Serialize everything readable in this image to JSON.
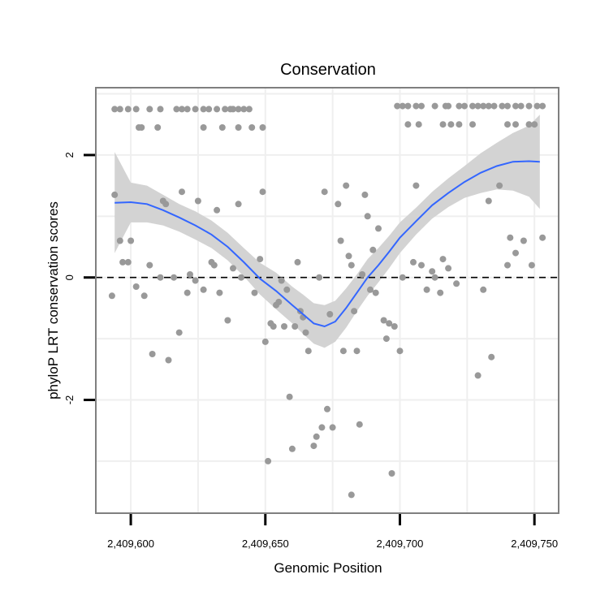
{
  "chart_data": {
    "type": "scatter",
    "title": "Conservation",
    "xlabel": "Genomic Position",
    "ylabel": "phyloP LRT conservation scores",
    "xlim": [
      2409587,
      2409759
    ],
    "ylim": [
      -3.85,
      3.1
    ],
    "x_ticks": [
      {
        "value": 2409600,
        "label": "2,409,600"
      },
      {
        "value": 2409650,
        "label": "2,409,650"
      },
      {
        "value": 2409700,
        "label": "2,409,700"
      },
      {
        "value": 2409750,
        "label": "2,409,750"
      }
    ],
    "y_ticks": [
      {
        "value": -2,
        "label": "-2"
      },
      {
        "value": 0,
        "label": "0"
      },
      {
        "value": 2,
        "label": "2"
      }
    ],
    "grid": true,
    "reference_line": {
      "y": 0,
      "style": "dashed"
    },
    "colors": {
      "points": "#999999",
      "smooth": "#3366ff",
      "ribbon": "#d3d3d3",
      "grid": "#efefef",
      "border": "#7f7f7f",
      "reference": "#000000"
    },
    "points": [
      [
        2409594,
        2.75
      ],
      [
        2409596,
        2.75
      ],
      [
        2409599,
        2.75
      ],
      [
        2409602,
        2.75
      ],
      [
        2409607,
        2.75
      ],
      [
        2409611,
        2.75
      ],
      [
        2409617,
        2.75
      ],
      [
        2409619,
        2.75
      ],
      [
        2409621,
        2.75
      ],
      [
        2409624,
        2.75
      ],
      [
        2409627,
        2.75
      ],
      [
        2409629,
        2.75
      ],
      [
        2409632,
        2.75
      ],
      [
        2409635,
        2.75
      ],
      [
        2409637,
        2.75
      ],
      [
        2409638,
        2.75
      ],
      [
        2409640,
        2.75
      ],
      [
        2409642,
        2.75
      ],
      [
        2409644,
        2.75
      ],
      [
        2409603,
        2.45
      ],
      [
        2409604,
        2.45
      ],
      [
        2409610,
        2.45
      ],
      [
        2409627,
        2.45
      ],
      [
        2409634,
        2.45
      ],
      [
        2409640,
        2.45
      ],
      [
        2409645,
        2.45
      ],
      [
        2409649,
        2.45
      ],
      [
        2409699,
        2.8
      ],
      [
        2409701,
        2.8
      ],
      [
        2409703,
        2.8
      ],
      [
        2409706,
        2.8
      ],
      [
        2409708,
        2.8
      ],
      [
        2409713,
        2.8
      ],
      [
        2409717,
        2.8
      ],
      [
        2409718,
        2.8
      ],
      [
        2409722,
        2.8
      ],
      [
        2409724,
        2.8
      ],
      [
        2409727,
        2.8
      ],
      [
        2409729,
        2.8
      ],
      [
        2409731,
        2.8
      ],
      [
        2409733,
        2.8
      ],
      [
        2409735,
        2.8
      ],
      [
        2409738,
        2.8
      ],
      [
        2409740,
        2.8
      ],
      [
        2409743,
        2.8
      ],
      [
        2409745,
        2.8
      ],
      [
        2409748,
        2.8
      ],
      [
        2409751,
        2.8
      ],
      [
        2409753,
        2.8
      ],
      [
        2409703,
        2.5
      ],
      [
        2409707,
        2.5
      ],
      [
        2409716,
        2.5
      ],
      [
        2409719,
        2.5
      ],
      [
        2409722,
        2.5
      ],
      [
        2409727,
        2.5
      ],
      [
        2409740,
        2.5
      ],
      [
        2409743,
        2.5
      ],
      [
        2409748,
        2.5
      ],
      [
        2409750,
        2.5
      ],
      [
        2409594,
        1.35
      ],
      [
        2409596,
        0.6
      ],
      [
        2409597,
        0.25
      ],
      [
        2409599,
        0.25
      ],
      [
        2409600,
        0.6
      ],
      [
        2409593,
        -0.3
      ],
      [
        2409602,
        -0.15
      ],
      [
        2409605,
        -0.3
      ],
      [
        2409607,
        0.2
      ],
      [
        2409608,
        -1.25
      ],
      [
        2409611,
        0
      ],
      [
        2409612,
        1.25
      ],
      [
        2409613,
        1.2
      ],
      [
        2409614,
        -1.35
      ],
      [
        2409616,
        0
      ],
      [
        2409618,
        -0.9
      ],
      [
        2409619,
        1.4
      ],
      [
        2409621,
        -0.25
      ],
      [
        2409622,
        0.05
      ],
      [
        2409624,
        -0.05
      ],
      [
        2409625,
        1.25
      ],
      [
        2409627,
        -0.2
      ],
      [
        2409630,
        0.25
      ],
      [
        2409631,
        0.2
      ],
      [
        2409632,
        1.1
      ],
      [
        2409633,
        -0.25
      ],
      [
        2409636,
        -0.7
      ],
      [
        2409638,
        0.15
      ],
      [
        2409640,
        1.2
      ],
      [
        2409641,
        0
      ],
      [
        2409646,
        -0.25
      ],
      [
        2409648,
        0.3
      ],
      [
        2409649,
        1.4
      ],
      [
        2409650,
        -1.05
      ],
      [
        2409651,
        -3
      ],
      [
        2409652,
        -0.75
      ],
      [
        2409653,
        -0.8
      ],
      [
        2409654,
        -0.45
      ],
      [
        2409655,
        -0.4
      ],
      [
        2409656,
        -0.05
      ],
      [
        2409657,
        -0.8
      ],
      [
        2409658,
        -0.2
      ],
      [
        2409659,
        -1.95
      ],
      [
        2409660,
        -2.8
      ],
      [
        2409661,
        -0.8
      ],
      [
        2409662,
        0.25
      ],
      [
        2409663,
        -0.55
      ],
      [
        2409664,
        -0.65
      ],
      [
        2409665,
        -0.9
      ],
      [
        2409666,
        -1.2
      ],
      [
        2409668,
        -2.75
      ],
      [
        2409669,
        -2.6
      ],
      [
        2409670,
        0
      ],
      [
        2409671,
        -2.45
      ],
      [
        2409672,
        1.4
      ],
      [
        2409673,
        -2.15
      ],
      [
        2409674,
        -0.6
      ],
      [
        2409675,
        -2.45
      ],
      [
        2409677,
        1.2
      ],
      [
        2409678,
        0.6
      ],
      [
        2409679,
        -1.2
      ],
      [
        2409680,
        1.5
      ],
      [
        2409681,
        0.35
      ],
      [
        2409682,
        0.2
      ],
      [
        2409682,
        -3.55
      ],
      [
        2409683,
        -0.55
      ],
      [
        2409684,
        -1.2
      ],
      [
        2409685,
        -2.4
      ],
      [
        2409686,
        0.05
      ],
      [
        2409687,
        1.35
      ],
      [
        2409688,
        1
      ],
      [
        2409689,
        -0.2
      ],
      [
        2409690,
        0.45
      ],
      [
        2409691,
        -0.25
      ],
      [
        2409692,
        0.8
      ],
      [
        2409694,
        -0.7
      ],
      [
        2409695,
        -1
      ],
      [
        2409696,
        -0.75
      ],
      [
        2409697,
        -3.2
      ],
      [
        2409698,
        -0.8
      ],
      [
        2409700,
        -1.2
      ],
      [
        2409701,
        0
      ],
      [
        2409705,
        0.25
      ],
      [
        2409706,
        1.5
      ],
      [
        2409708,
        0.2
      ],
      [
        2409710,
        -0.2
      ],
      [
        2409712,
        0.1
      ],
      [
        2409713,
        0
      ],
      [
        2409715,
        -0.25
      ],
      [
        2409716,
        0.3
      ],
      [
        2409718,
        0.15
      ],
      [
        2409721,
        -0.1
      ],
      [
        2409729,
        -1.6
      ],
      [
        2409731,
        -0.2
      ],
      [
        2409733,
        1.25
      ],
      [
        2409734,
        -1.3
      ],
      [
        2409737,
        1.5
      ],
      [
        2409740,
        0.2
      ],
      [
        2409741,
        0.65
      ],
      [
        2409743,
        0.4
      ],
      [
        2409746,
        0.6
      ],
      [
        2409749,
        0.2
      ],
      [
        2409753,
        0.65
      ]
    ],
    "smooth": {
      "x": [
        2409594,
        2409600,
        2409606,
        2409612,
        2409618,
        2409624,
        2409630,
        2409636,
        2409642,
        2409648,
        2409654,
        2409660,
        2409664,
        2409668,
        2409672,
        2409676,
        2409680,
        2409684,
        2409688,
        2409692,
        2409696,
        2409700,
        2409706,
        2409712,
        2409718,
        2409724,
        2409730,
        2409736,
        2409742,
        2409748,
        2409752
      ],
      "y": [
        1.22,
        1.23,
        1.2,
        1.1,
        0.98,
        0.85,
        0.7,
        0.5,
        0.25,
        -0.02,
        -0.22,
        -0.45,
        -0.6,
        -0.75,
        -0.8,
        -0.72,
        -0.5,
        -0.25,
        0,
        0.2,
        0.42,
        0.65,
        0.92,
        1.18,
        1.38,
        1.56,
        1.71,
        1.82,
        1.89,
        1.9,
        1.89
      ],
      "lower": [
        0.4,
        0.9,
        0.9,
        0.85,
        0.75,
        0.62,
        0.48,
        0.28,
        0.02,
        -0.28,
        -0.52,
        -0.75,
        -0.92,
        -1.08,
        -1.15,
        -1.05,
        -0.82,
        -0.55,
        -0.3,
        -0.08,
        0.15,
        0.4,
        0.7,
        0.96,
        1.15,
        1.3,
        1.38,
        1.44,
        1.42,
        1.32,
        1.12
      ],
      "upper": [
        2.05,
        1.55,
        1.5,
        1.35,
        1.2,
        1.08,
        0.93,
        0.73,
        0.48,
        0.24,
        0.08,
        -0.15,
        -0.28,
        -0.42,
        -0.45,
        -0.38,
        -0.18,
        0.05,
        0.3,
        0.48,
        0.68,
        0.9,
        1.14,
        1.4,
        1.62,
        1.82,
        2.03,
        2.2,
        2.36,
        2.48,
        2.66
      ]
    }
  }
}
